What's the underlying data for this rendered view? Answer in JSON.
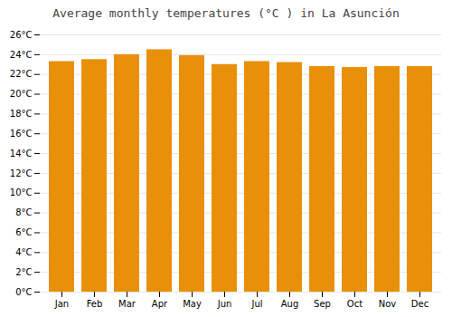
{
  "chart_data": {
    "type": "bar",
    "title": "Average monthly temperatures (°C ) in La Asunción",
    "categories": [
      "Jan",
      "Feb",
      "Mar",
      "Apr",
      "May",
      "Jun",
      "Jul",
      "Aug",
      "Sep",
      "Oct",
      "Nov",
      "Dec"
    ],
    "values": [
      23.3,
      23.5,
      24.0,
      24.5,
      23.9,
      23.0,
      23.3,
      23.2,
      22.8,
      22.7,
      22.8,
      22.8
    ],
    "color": "#E8900A",
    "ylim": [
      0,
      26
    ],
    "yticks": [
      {
        "value": 0,
        "label": "0°C"
      },
      {
        "value": 2,
        "label": "2°C"
      },
      {
        "value": 4,
        "label": "4°C"
      },
      {
        "value": 6,
        "label": "6°C"
      },
      {
        "value": 8,
        "label": "8°C"
      },
      {
        "value": 10,
        "label": "10°C"
      },
      {
        "value": 12,
        "label": "12°C"
      },
      {
        "value": 14,
        "label": "14°C"
      },
      {
        "value": 16,
        "label": "16°C"
      },
      {
        "value": 18,
        "label": "18°C"
      },
      {
        "value": 20,
        "label": "20°C"
      },
      {
        "value": 22,
        "label": "22°C"
      },
      {
        "value": 24,
        "label": "24°C"
      },
      {
        "value": 26,
        "label": "26°C"
      }
    ],
    "grid": true
  }
}
